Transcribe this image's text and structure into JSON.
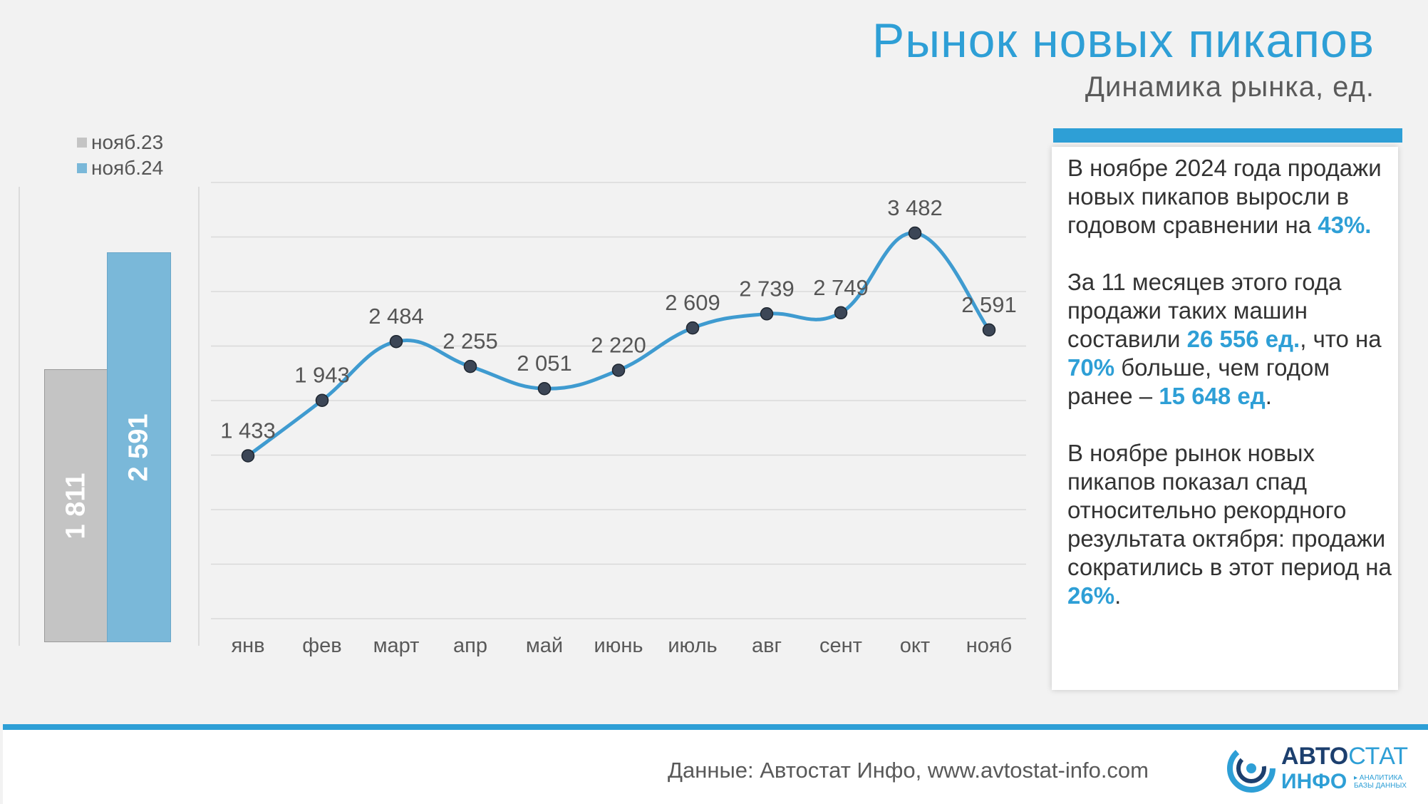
{
  "title": "Рынок новых пикапов",
  "subtitle": "Динамика рынка, ед.",
  "comparison": {
    "legend": [
      {
        "label": "нояб.23",
        "color": "#c4c4c4"
      },
      {
        "label": "нояб.24",
        "color": "#7ab8d9"
      }
    ],
    "bars": [
      {
        "label": "1 811",
        "value": 1811,
        "color": "#c4c4c4"
      },
      {
        "label": "2 591",
        "value": 2591,
        "color": "#7ab8d9"
      }
    ]
  },
  "chart_data": {
    "type": "line",
    "categories": [
      "янв",
      "фев",
      "март",
      "апр",
      "май",
      "июнь",
      "июль",
      "авг",
      "сент",
      "окт",
      "нояб"
    ],
    "values": [
      1433,
      1943,
      2484,
      2255,
      2051,
      2220,
      2609,
      2739,
      2749,
      3482,
      2591
    ],
    "value_labels": [
      "1 433",
      "1 943",
      "2 484",
      "2 255",
      "2 051",
      "2 220",
      "2 609",
      "2 739",
      "2 749",
      "3 482",
      "2 591"
    ],
    "ylim": [
      0,
      4000
    ],
    "grid": true,
    "line_color": "#3f9bd0",
    "marker_color": "#3c4656"
  },
  "text": {
    "p1_a": "В ноябре 2024 года продажи новых пикапов выросли в годовом сравнении на ",
    "p1_hl": "43%.",
    "p2_a": "За 11 месяцев этого года продажи таких машин составили ",
    "p2_hl1": "26 556 ед.",
    "p2_b": ", что на ",
    "p2_hl2": "70%",
    "p2_c": " больше, чем годом ранее – ",
    "p2_hl3": "15 648 ед",
    "p2_d": ".",
    "p3_a": "В ноябре рынок новых пикапов показал спад относительно рекордного результата октября: продажи сократились в этот период на  ",
    "p3_hl": "26%",
    "p3_b": "."
  },
  "footer": {
    "source": "Данные: Автостат Инфо, www.avtostat-info.com",
    "logo_a": "АВТО",
    "logo_b": "СТАТ",
    "logo_c": "ИНФО",
    "logo_tag_1": "▸ АНАЛИТИКА",
    "logo_tag_2": "БАЗЫ ДАННЫХ"
  },
  "colors": {
    "accent": "#2e9fd6",
    "grid": "#d9d9d9"
  }
}
